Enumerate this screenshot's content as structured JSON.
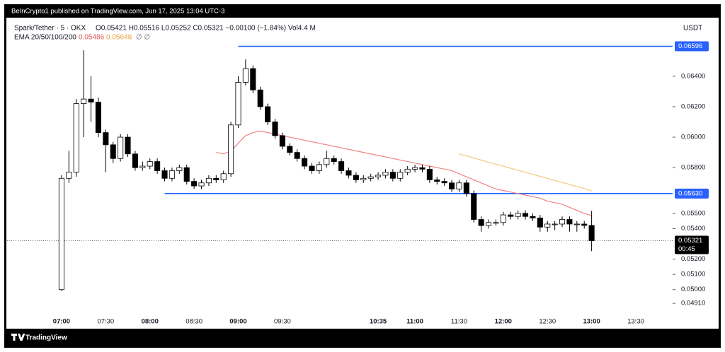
{
  "header": {
    "published": "BeInCrypto1 published on TradingView.com, Jun 17, 2025 13:04 UTC-3",
    "symbol": "Spark/Tether · 5 · OKX",
    "ohlc": "O0.05421 H0.05516 L0.05252 C0.05321 −0.00100 (−1.84%) Vol4.4 M",
    "indicator": "EMA 20/50/100/200",
    "indicator_values": [
      "0.05486",
      "0.05648"
    ],
    "indicator_hidden": "∅ ∅",
    "currency": "USDT"
  },
  "footer": {
    "brand": "TradingView"
  },
  "chart_data": {
    "type": "candlestick",
    "x": [
      "07:00",
      "07:05",
      "07:10",
      "07:15",
      "07:20",
      "07:25",
      "07:30",
      "07:35",
      "07:40",
      "07:45",
      "07:50",
      "07:55",
      "08:00",
      "08:05",
      "08:10",
      "08:15",
      "08:20",
      "08:25",
      "08:30",
      "08:35",
      "08:40",
      "08:45",
      "08:50",
      "08:55",
      "09:00",
      "09:05",
      "09:10",
      "09:15",
      "09:20",
      "09:25",
      "09:30",
      "09:35",
      "09:40",
      "09:45",
      "09:50",
      "09:55",
      "10:00",
      "10:05",
      "10:10",
      "10:15",
      "10:20",
      "10:25",
      "10:30",
      "10:35",
      "10:40",
      "10:45",
      "10:50",
      "10:55",
      "11:00",
      "11:05",
      "11:10",
      "11:15",
      "11:20",
      "11:25",
      "11:30",
      "11:35",
      "11:40",
      "11:45",
      "11:50",
      "11:55",
      "12:00",
      "12:05",
      "12:10",
      "12:15",
      "12:20",
      "12:25",
      "12:30",
      "12:35",
      "12:40",
      "12:45",
      "12:50",
      "12:55",
      "13:00"
    ],
    "open": [
      0.05,
      0.0573,
      0.0577,
      0.0622,
      0.0625,
      0.0623,
      0.0603,
      0.0595,
      0.0586,
      0.06,
      0.0589,
      0.058,
      0.0581,
      0.0584,
      0.0578,
      0.0573,
      0.0578,
      0.058,
      0.0571,
      0.0568,
      0.057,
      0.0573,
      0.0572,
      0.0576,
      0.0608,
      0.0636,
      0.0645,
      0.0631,
      0.062,
      0.061,
      0.0601,
      0.0594,
      0.059,
      0.0586,
      0.0581,
      0.0578,
      0.0582,
      0.0586,
      0.0584,
      0.0578,
      0.0575,
      0.0572,
      0.0573,
      0.0574,
      0.0575,
      0.0577,
      0.0573,
      0.0577,
      0.0579,
      0.058,
      0.0579,
      0.0572,
      0.0571,
      0.057,
      0.0566,
      0.057,
      0.0563,
      0.0546,
      0.0542,
      0.0544,
      0.0544,
      0.0549,
      0.0548,
      0.055,
      0.0548,
      0.0547,
      0.0541,
      0.0543,
      0.0543,
      0.0546,
      0.0543,
      0.0543,
      0.05421
    ],
    "high": [
      0.0575,
      0.0591,
      0.0625,
      0.0657,
      0.064,
      0.0626,
      0.0605,
      0.0597,
      0.0602,
      0.0602,
      0.0591,
      0.0584,
      0.0586,
      0.0586,
      0.058,
      0.058,
      0.0582,
      0.0582,
      0.0573,
      0.0572,
      0.0575,
      0.0575,
      0.0578,
      0.061,
      0.064,
      0.0651,
      0.0647,
      0.0633,
      0.0622,
      0.0612,
      0.0603,
      0.0596,
      0.0592,
      0.0588,
      0.0583,
      0.0584,
      0.0591,
      0.0588,
      0.0586,
      0.058,
      0.0577,
      0.0575,
      0.0576,
      0.0577,
      0.0579,
      0.0579,
      0.0579,
      0.0581,
      0.0582,
      0.0582,
      0.0581,
      0.0574,
      0.0573,
      0.0572,
      0.0572,
      0.0572,
      0.0565,
      0.0548,
      0.0546,
      0.0546,
      0.0551,
      0.0551,
      0.0552,
      0.0552,
      0.055,
      0.0549,
      0.0545,
      0.0545,
      0.0548,
      0.0548,
      0.0545,
      0.0545,
      0.05516
    ],
    "low": [
      0.0499,
      0.057,
      0.0574,
      0.06,
      0.061,
      0.06,
      0.0577,
      0.0583,
      0.0584,
      0.0587,
      0.0578,
      0.0578,
      0.0579,
      0.0576,
      0.0571,
      0.0571,
      0.0576,
      0.0569,
      0.0566,
      0.0566,
      0.0568,
      0.057,
      0.057,
      0.0574,
      0.0606,
      0.0634,
      0.0629,
      0.0618,
      0.0608,
      0.0599,
      0.0592,
      0.0588,
      0.0584,
      0.0579,
      0.0576,
      0.0576,
      0.058,
      0.0582,
      0.0576,
      0.0573,
      0.057,
      0.057,
      0.0571,
      0.0572,
      0.0573,
      0.0571,
      0.0571,
      0.0575,
      0.0577,
      0.0577,
      0.057,
      0.0569,
      0.0568,
      0.0564,
      0.0564,
      0.0561,
      0.0544,
      0.0538,
      0.054,
      0.0542,
      0.0542,
      0.0546,
      0.0546,
      0.0546,
      0.0545,
      0.0538,
      0.0538,
      0.0539,
      0.0541,
      0.0538,
      0.0538,
      0.054,
      0.05252
    ],
    "close": [
      0.0573,
      0.0577,
      0.0622,
      0.0625,
      0.0623,
      0.0603,
      0.0595,
      0.0586,
      0.06,
      0.0589,
      0.058,
      0.0581,
      0.0584,
      0.0578,
      0.0573,
      0.0578,
      0.058,
      0.0571,
      0.0568,
      0.057,
      0.0573,
      0.0572,
      0.0576,
      0.0608,
      0.0636,
      0.0645,
      0.0631,
      0.062,
      0.061,
      0.0601,
      0.0594,
      0.059,
      0.0586,
      0.0581,
      0.0578,
      0.0582,
      0.0586,
      0.0584,
      0.0578,
      0.0575,
      0.0572,
      0.0573,
      0.0574,
      0.0575,
      0.0577,
      0.0573,
      0.0577,
      0.0579,
      0.058,
      0.0579,
      0.0572,
      0.0571,
      0.057,
      0.0566,
      0.057,
      0.0563,
      0.0546,
      0.0542,
      0.0544,
      0.0544,
      0.0549,
      0.0548,
      0.055,
      0.0548,
      0.0547,
      0.0541,
      0.0543,
      0.0543,
      0.0546,
      0.0543,
      0.0543,
      0.05421,
      0.05321
    ],
    "up_color": "#ffffff",
    "down_color": "#000000",
    "series": [
      {
        "color": "#f08080",
        "values": [
          null,
          null,
          null,
          null,
          null,
          null,
          null,
          null,
          null,
          null,
          null,
          null,
          null,
          null,
          null,
          null,
          null,
          null,
          null,
          null,
          null,
          0.059,
          0.0589,
          0.0591,
          0.0596,
          0.0601,
          0.0603,
          0.0604,
          0.0603,
          0.0602,
          0.0601,
          0.06,
          0.0599,
          0.0598,
          0.0597,
          0.0596,
          0.0595,
          0.0594,
          0.0593,
          0.0592,
          0.0591,
          0.059,
          0.0589,
          0.0588,
          0.0587,
          0.0586,
          0.0585,
          0.0584,
          0.0583,
          0.0582,
          0.0581,
          0.058,
          0.0579,
          0.0578,
          0.0576,
          0.0574,
          0.0572,
          0.057,
          0.0568,
          0.0566,
          0.0565,
          0.0564,
          0.0563,
          0.0562,
          0.0561,
          0.056,
          0.0558,
          0.0557,
          0.0556,
          0.0554,
          0.0552,
          0.055,
          0.05486
        ]
      },
      {
        "color": "#f5c77e",
        "values": [
          null,
          null,
          null,
          null,
          null,
          null,
          null,
          null,
          null,
          null,
          null,
          null,
          null,
          null,
          null,
          null,
          null,
          null,
          null,
          null,
          null,
          null,
          null,
          null,
          null,
          null,
          null,
          null,
          null,
          null,
          null,
          null,
          null,
          null,
          null,
          null,
          null,
          null,
          null,
          null,
          null,
          null,
          null,
          null,
          null,
          null,
          null,
          null,
          null,
          null,
          null,
          null,
          null,
          null,
          0.0589,
          0.05877,
          0.05863,
          0.0585,
          0.05836,
          0.05823,
          0.0581,
          0.05796,
          0.05783,
          0.0577,
          0.05756,
          0.05743,
          0.0573,
          0.05716,
          0.05703,
          0.0569,
          0.05676,
          0.05663,
          0.05648
        ]
      }
    ],
    "levels": [
      {
        "value": 0.06596,
        "start": "09:00",
        "color": "#2962ff"
      },
      {
        "value": 0.0563,
        "label": "0.05630",
        "start": "08:10",
        "color": "#2962ff"
      }
    ],
    "last_price": 0.05321,
    "countdown": "00:45",
    "xlim": [
      "06:23",
      "13:55"
    ],
    "xticks": [
      "07:00",
      "07:30",
      "08:00",
      "08:30",
      "09:00",
      "09:30",
      "10:35",
      "11:00",
      "11:30",
      "12:00",
      "12:30",
      "13:00",
      "13:30"
    ],
    "bold_xticks": [
      "07:00",
      "08:00",
      "09:00",
      "10:35",
      "11:00",
      "12:00",
      "13:00"
    ],
    "ylim": [
      0.0479,
      0.0677
    ],
    "yticks": [
      {
        "value": 0.0491,
        "label": "0.04910"
      },
      {
        "value": 0.05,
        "label": "0.05000"
      },
      {
        "value": 0.051,
        "label": "0.05100"
      },
      {
        "value": 0.052,
        "label": "0.05200"
      },
      {
        "value": 0.054,
        "label": "0.05400"
      },
      {
        "value": 0.055,
        "label": "0.05500"
      },
      {
        "value": 0.058,
        "label": "0.05800"
      },
      {
        "value": 0.06,
        "label": "0.06000"
      },
      {
        "value": 0.062,
        "label": "0.06200"
      },
      {
        "value": 0.064,
        "label": "0.06400"
      }
    ]
  }
}
